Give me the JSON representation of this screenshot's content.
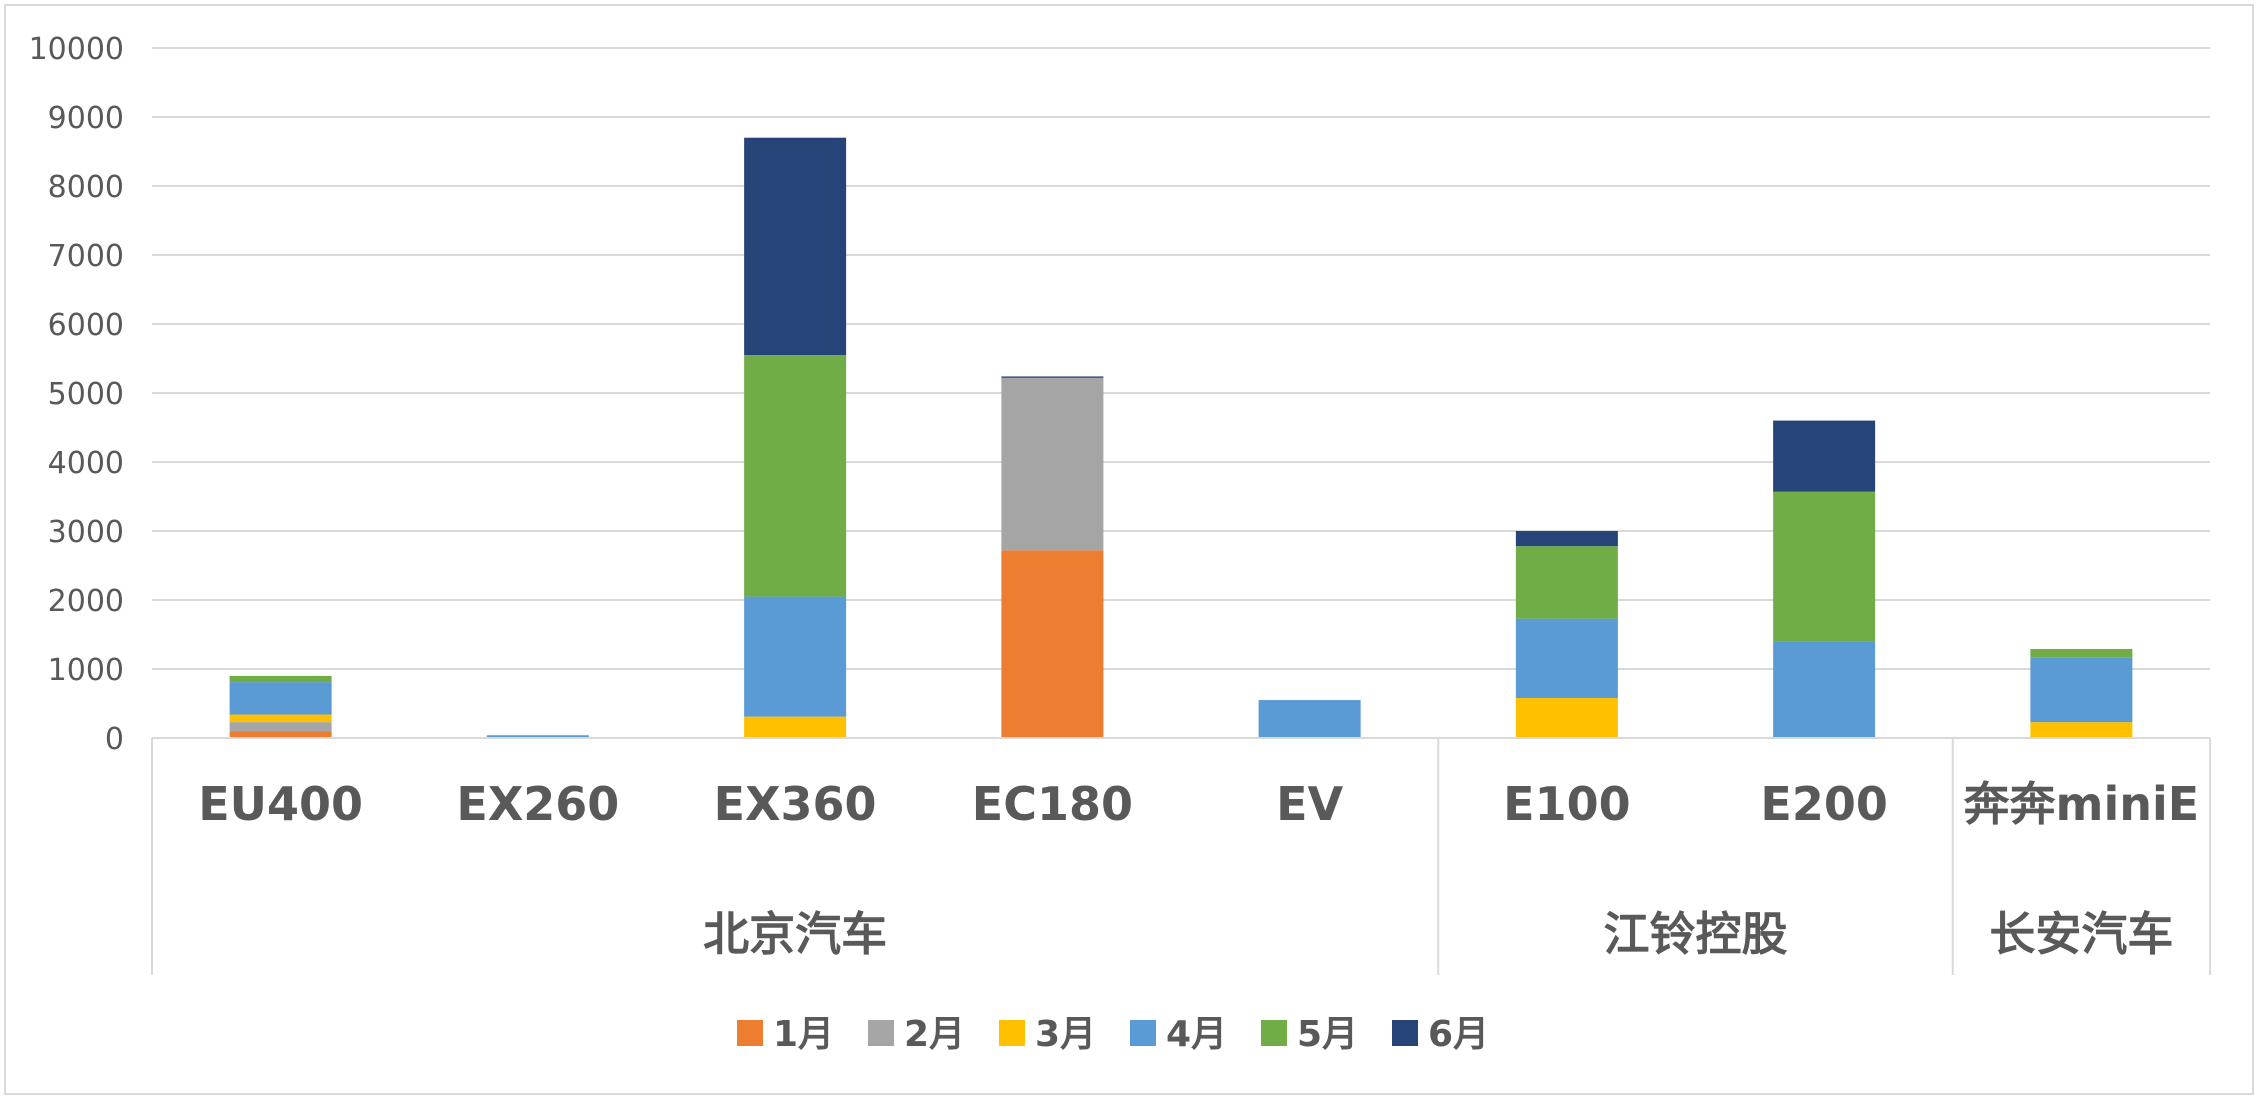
{
  "chart_data": {
    "type": "bar",
    "stacked": true,
    "title": "",
    "xlabel": "",
    "ylabel": "",
    "ylim": [
      0,
      10000
    ],
    "yticks": [
      0,
      1000,
      2000,
      3000,
      4000,
      5000,
      6000,
      7000,
      8000,
      9000,
      10000
    ],
    "grid": true,
    "legend_position": "bottom",
    "categories": [
      "EU400",
      "EX260",
      "EX360",
      "EC180",
      "EV",
      "E100",
      "E200",
      "奔奔miniE"
    ],
    "groups": [
      {
        "label": "北京汽车",
        "categories": [
          "EU400",
          "EX260",
          "EX360",
          "EC180",
          "EV"
        ]
      },
      {
        "label": "江铃控股",
        "categories": [
          "E100",
          "E200"
        ]
      },
      {
        "label": "长安汽车",
        "categories": [
          "奔奔miniE"
        ]
      }
    ],
    "series": [
      {
        "name": "1月",
        "color": "#ED7D31",
        "values": [
          100,
          0,
          0,
          2720,
          0,
          0,
          0,
          0
        ]
      },
      {
        "name": "2月",
        "color": "#A5A5A5",
        "values": [
          130,
          0,
          0,
          2500,
          0,
          0,
          0,
          0
        ]
      },
      {
        "name": "3月",
        "color": "#FFC000",
        "values": [
          110,
          0,
          310,
          0,
          0,
          580,
          0,
          230
        ]
      },
      {
        "name": "4月",
        "color": "#5B9BD5",
        "values": [
          470,
          40,
          1740,
          0,
          550,
          1150,
          1400,
          940
        ]
      },
      {
        "name": "5月",
        "color": "#70AD47",
        "values": [
          90,
          0,
          3500,
          0,
          0,
          1050,
          2170,
          120
        ]
      },
      {
        "name": "6月",
        "color": "#264478",
        "values": [
          0,
          0,
          3150,
          20,
          0,
          220,
          1030,
          0
        ]
      }
    ]
  }
}
